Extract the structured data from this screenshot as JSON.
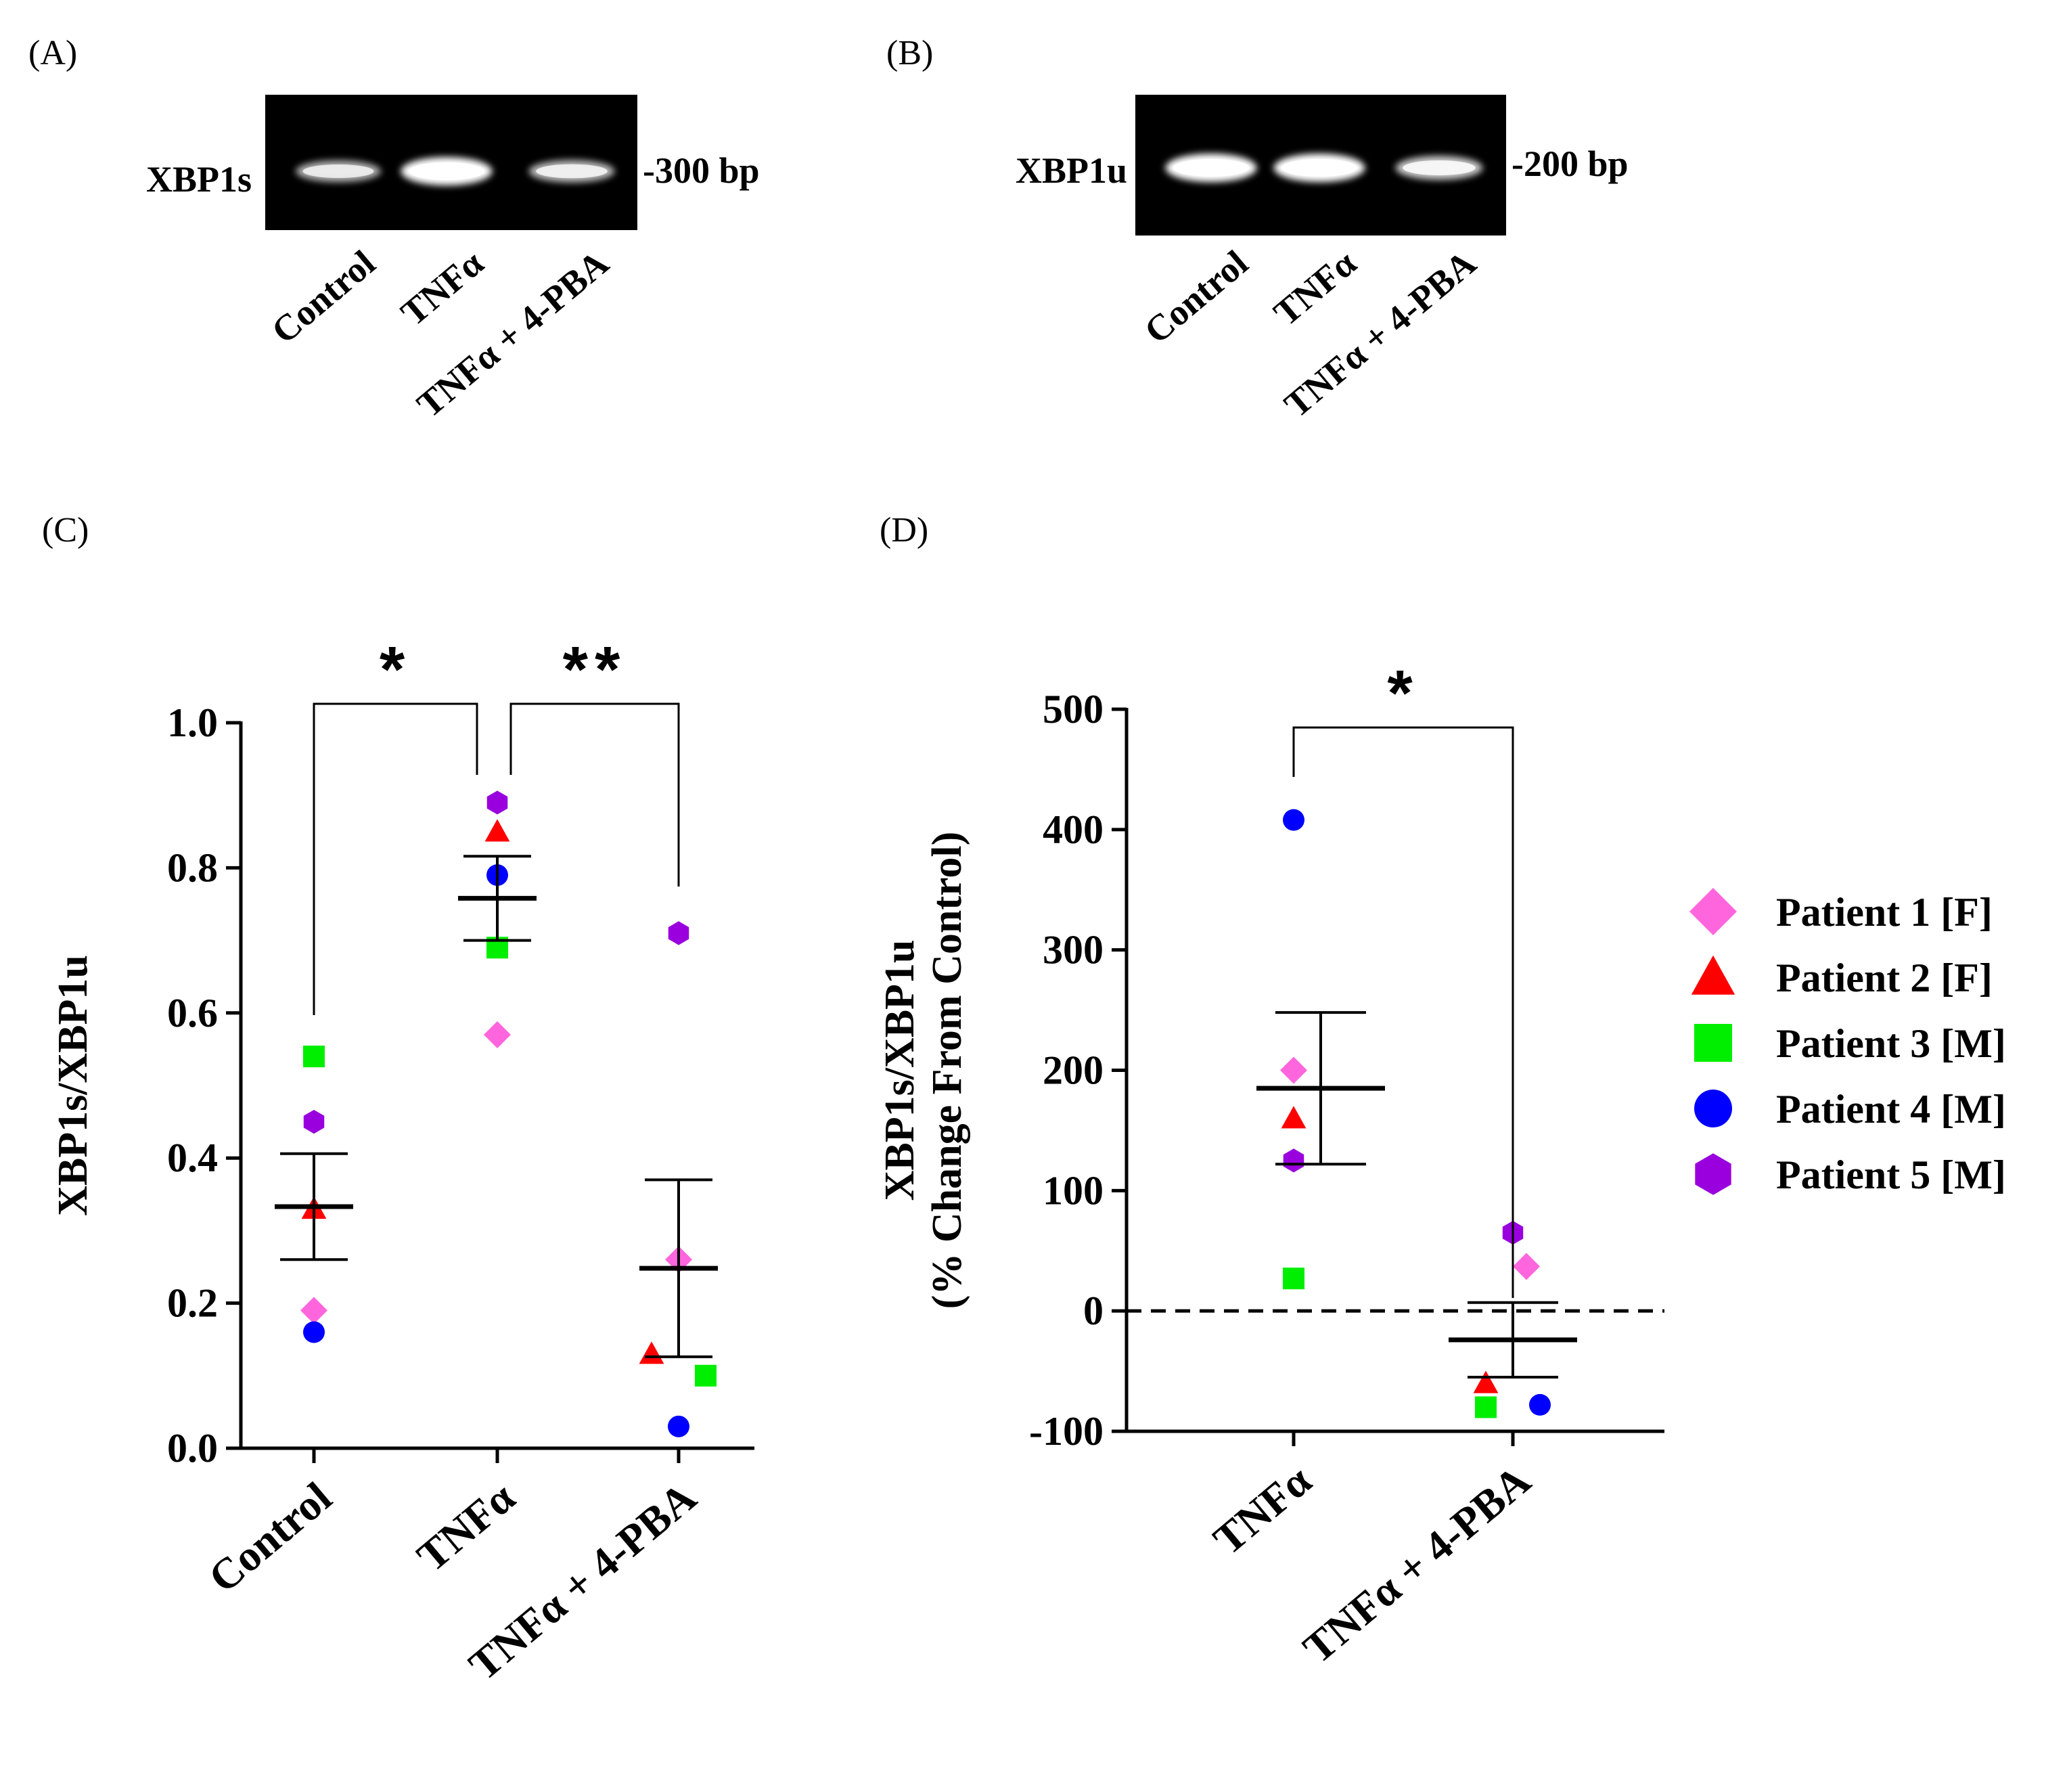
{
  "colors": {
    "patient1": "#FF66DD",
    "patient2": "#FF0000",
    "patient3": "#00EE00",
    "patient4": "#0000FF",
    "patient5": "#9900DD",
    "axis": "#000000"
  },
  "legend": [
    {
      "label": "Patient 1 [F]",
      "marker": "diamond",
      "color": "#FF66DD"
    },
    {
      "label": "Patient 2 [F]",
      "marker": "triangle",
      "color": "#FF0000"
    },
    {
      "label": "Patient 3 [M]",
      "marker": "square",
      "color": "#00EE00"
    },
    {
      "label": "Patient 4 [M]",
      "marker": "circle",
      "color": "#0000FF"
    },
    {
      "label": "Patient 5 [M]",
      "marker": "hexagon",
      "color": "#9900DD"
    }
  ],
  "gels": [
    {
      "panel": "(A)",
      "gene": "XBP1s",
      "size": "-300 bp",
      "lanes": [
        "Control",
        "TNFα",
        "TNFα + 4-PBA"
      ],
      "band_intensity": [
        0.55,
        1.0,
        0.6
      ]
    },
    {
      "panel": "(B)",
      "gene": "XBP1u",
      "size": "-200 bp",
      "lanes": [
        "Control",
        "TNFα",
        "TNFα + 4-PBA"
      ],
      "band_intensity": [
        1.0,
        1.0,
        0.7
      ]
    }
  ],
  "chart_data": [
    {
      "panel": "(C)",
      "type": "scatter",
      "ylabel": "XBP1s/XBP1u",
      "ylim": [
        0,
        1.0
      ],
      "yticks": [
        "0.0",
        "0.2",
        "0.4",
        "0.6",
        "0.8",
        "1.0"
      ],
      "categories": [
        "Control",
        "TNFα",
        "TNFα + 4-PBA"
      ],
      "series": [
        {
          "name": "Patient 1 [F]",
          "values": [
            0.19,
            0.57,
            0.26
          ]
        },
        {
          "name": "Patient 2 [F]",
          "values": [
            0.33,
            0.85,
            0.13
          ]
        },
        {
          "name": "Patient 3 [M]",
          "values": [
            0.54,
            0.69,
            0.1
          ]
        },
        {
          "name": "Patient 4 [M]",
          "values": [
            0.16,
            0.79,
            0.03
          ]
        },
        {
          "name": "Patient 5 [M]",
          "values": [
            0.45,
            0.89,
            0.71
          ]
        }
      ],
      "mean": [
        0.333,
        0.758,
        0.248
      ],
      "sem": [
        0.073,
        0.058,
        0.122
      ],
      "significance": [
        {
          "from": 0,
          "to": 1,
          "label": "*"
        },
        {
          "from": 1,
          "to": 2,
          "label": "**"
        }
      ]
    },
    {
      "panel": "(D)",
      "type": "scatter",
      "ylabel": "XBP1s/XBP1u",
      "ylabel2": "(% Change From Control)",
      "ylim": [
        -100,
        500
      ],
      "yticks": [
        "-100",
        "0",
        "100",
        "200",
        "300",
        "400",
        "500"
      ],
      "categories": [
        "TNFα",
        "TNFα + 4-PBA"
      ],
      "series": [
        {
          "name": "Patient 1 [F]",
          "values": [
            200,
            37
          ]
        },
        {
          "name": "Patient 2 [F]",
          "values": [
            160,
            -60
          ]
        },
        {
          "name": "Patient 3 [M]",
          "values": [
            27,
            -80
          ]
        },
        {
          "name": "Patient 4 [M]",
          "values": [
            408,
            -78
          ]
        },
        {
          "name": "Patient 5 [M]",
          "values": [
            125,
            65
          ]
        }
      ],
      "mean": [
        185,
        -24
      ],
      "sem": [
        63,
        31
      ],
      "reference_line": 0,
      "significance": [
        {
          "from": 0,
          "to": 1,
          "label": "*"
        }
      ]
    }
  ]
}
